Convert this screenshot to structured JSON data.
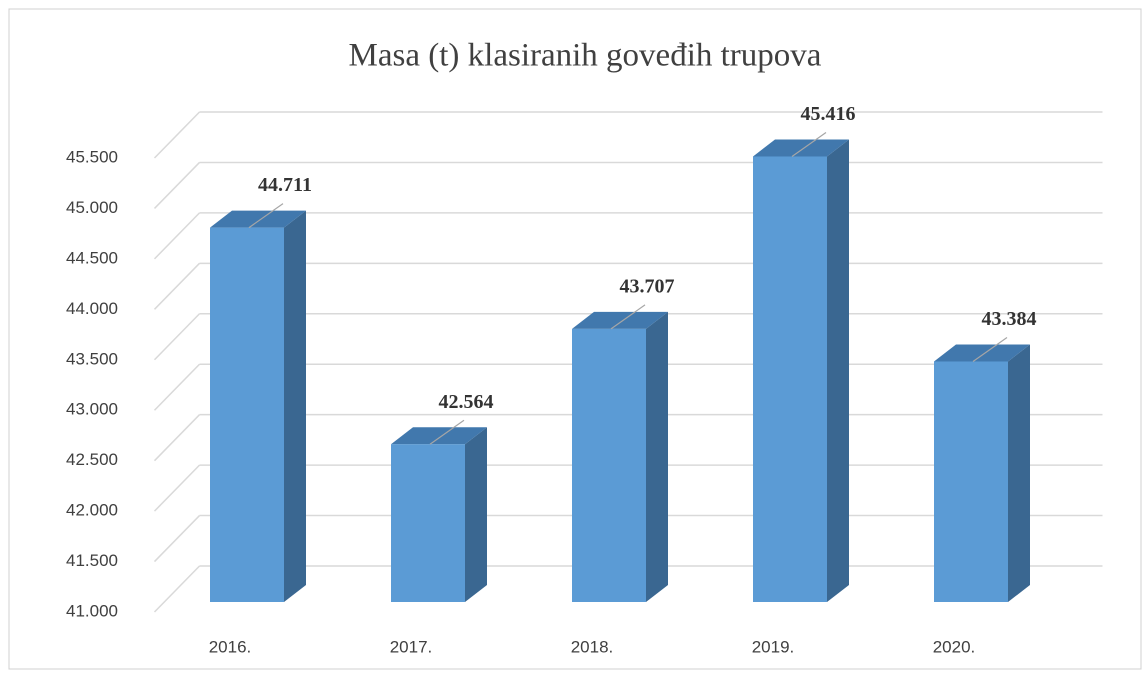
{
  "chart_data": {
    "type": "bar3d",
    "title": "Masa (t) klasiranih goveđih trupova",
    "categories": [
      "2016.",
      "2017.",
      "2018.",
      "2019.",
      "2020."
    ],
    "values": [
      44711,
      42564,
      43707,
      45416,
      43384
    ],
    "value_labels": [
      "44.711",
      "42.564",
      "43.707",
      "45.416",
      "43.384"
    ],
    "color": "#5b9bd5",
    "ylim": [
      41000,
      45500
    ],
    "yticks": [
      {
        "value": 41000,
        "label": "41.000"
      },
      {
        "value": 41500,
        "label": "41.500"
      },
      {
        "value": 42000,
        "label": "42.000"
      },
      {
        "value": 42500,
        "label": "42.500"
      },
      {
        "value": 43000,
        "label": "43.000"
      },
      {
        "value": 43500,
        "label": "43.500"
      },
      {
        "value": 44000,
        "label": "44.000"
      },
      {
        "value": 44500,
        "label": "44.500"
      },
      {
        "value": 45000,
        "label": "45.000"
      },
      {
        "value": 45500,
        "label": "45.500"
      }
    ],
    "grid": true
  }
}
